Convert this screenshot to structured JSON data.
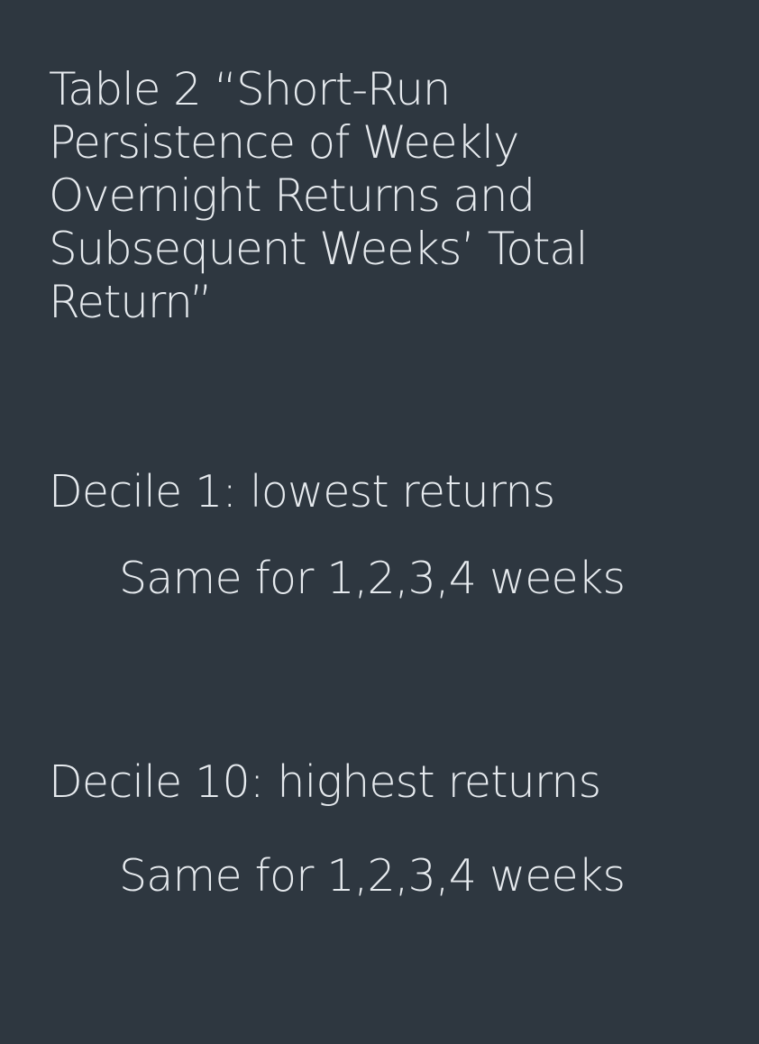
{
  "slide": {
    "title": "Table 2 “Short-Run\nPersistence of Weekly\nOvernight Returns and\nSubsequent Weeks’ Total\nReturn”",
    "bullets": [
      {
        "text": "Decile 1: lowest returns",
        "sub": "Same for 1,2,3,4 weeks"
      },
      {
        "text": "Decile 10: highest returns",
        "sub": "Same for 1,2,3,4 weeks"
      }
    ]
  },
  "colors": {
    "background": "#2e3740",
    "text": "#e6eaee"
  }
}
